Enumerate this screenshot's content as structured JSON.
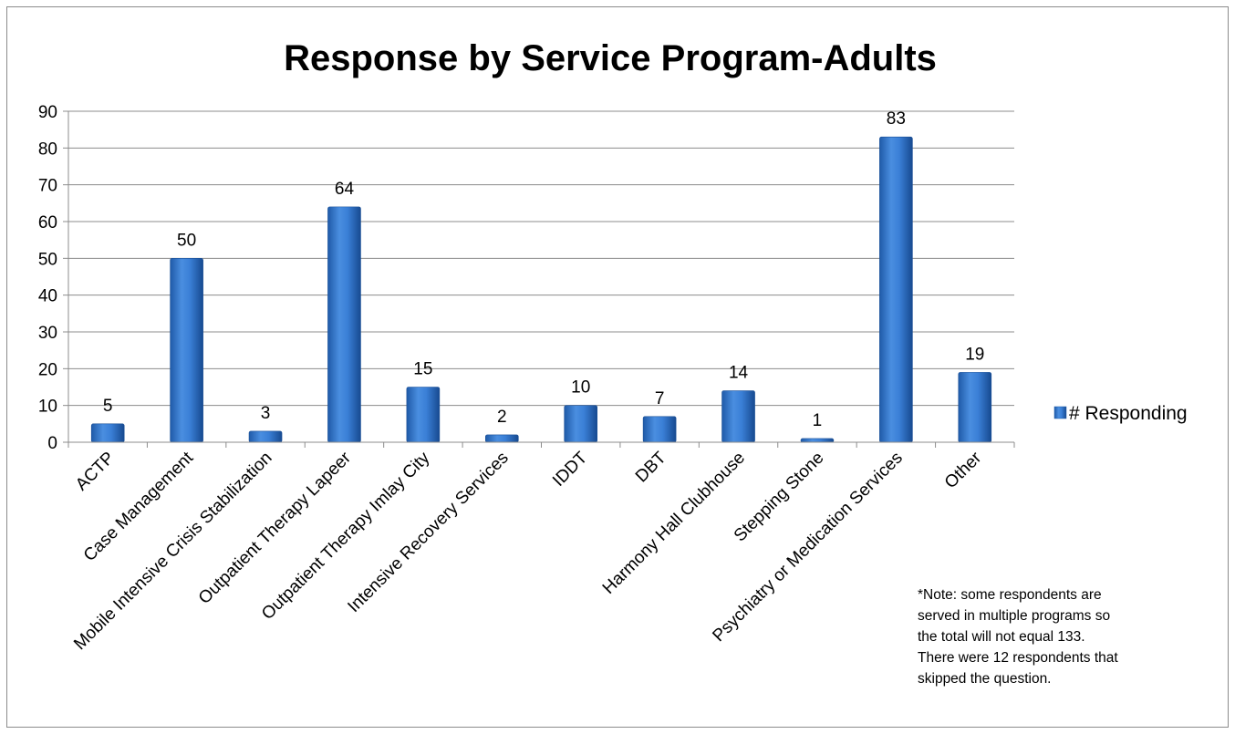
{
  "chart_data": {
    "type": "bar",
    "title": "Response by Service Program-Adults",
    "xlabel": "",
    "ylabel": "",
    "ylim": [
      0,
      90
    ],
    "yticks": [
      0,
      10,
      20,
      30,
      40,
      50,
      60,
      70,
      80,
      90
    ],
    "categories": [
      "ACTP",
      "Case Management",
      "Mobile Intensive Crisis Stabilization",
      "Outpatient Therapy Lapeer",
      "Outpatient Therapy Imlay City",
      "Intensive Recovery Services",
      "IDDT",
      "DBT",
      "Harmony Hall Clubhouse",
      "Stepping Stone",
      "Psychiatry or Medication Services",
      "Other"
    ],
    "series": [
      {
        "name": "# Responding",
        "values": [
          5,
          50,
          3,
          64,
          15,
          2,
          10,
          7,
          14,
          1,
          83,
          19
        ]
      }
    ],
    "grid": true,
    "legend": "right",
    "colors": {
      "bar": "#3a7fd6",
      "bar_dark": "#1f5aa8",
      "grid": "#8c8c8c"
    }
  },
  "note": [
    "*Note: some respondents are",
    "served in multiple programs so",
    "the total will not equal 133.",
    "There were 12 respondents that",
    "skipped the question."
  ]
}
